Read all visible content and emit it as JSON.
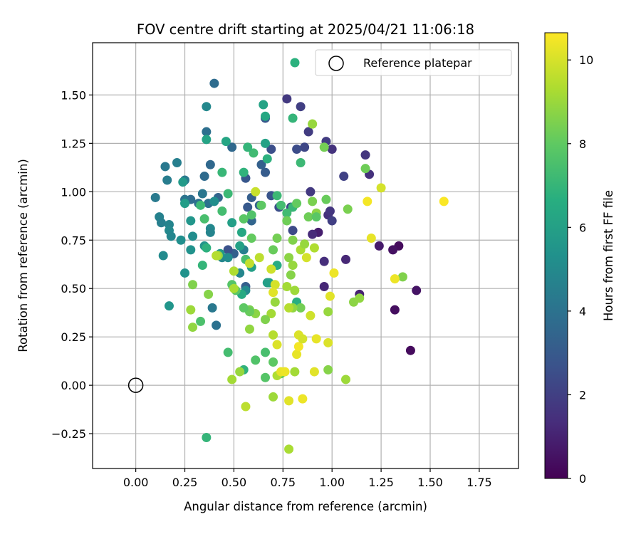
{
  "chart_data": {
    "type": "scatter",
    "title": "FOV centre drift starting at 2025/04/21 11:06:18",
    "xlabel": "Angular distance from reference (arcmin)",
    "ylabel": "Rotation from reference (arcmin)",
    "xlim": [
      -0.22,
      1.95
    ],
    "ylim": [
      -0.43,
      1.77
    ],
    "x_ticks": [
      "0.00",
      "0.25",
      "0.50",
      "0.75",
      "1.00",
      "1.25",
      "1.50",
      "1.75"
    ],
    "x_tick_values": [
      0,
      0.25,
      0.5,
      0.75,
      1.0,
      1.25,
      1.5,
      1.75
    ],
    "y_ticks": [
      "−0.25",
      "0.00",
      "0.25",
      "0.50",
      "0.75",
      "1.00",
      "1.25",
      "1.50"
    ],
    "y_tick_values": [
      -0.25,
      0,
      0.25,
      0.5,
      0.75,
      1.0,
      1.25,
      1.5
    ],
    "grid": true,
    "colormap": "viridis",
    "colorbar": {
      "label": "Hours from first FF file",
      "range": [
        0,
        10.65
      ],
      "ticks": [
        "0",
        "2",
        "4",
        "6",
        "8",
        "10"
      ],
      "tick_values": [
        0,
        2,
        4,
        6,
        8,
        10
      ]
    },
    "legend": {
      "position": "top-right",
      "entries": [
        {
          "label": "",
          "marker": "filled-circle",
          "color": "#2cb17e"
        },
        {
          "label": "Reference platepar",
          "marker": "open-circle",
          "color": "#000000"
        }
      ]
    },
    "reference_point": {
      "x": 0.0,
      "y": 0.0
    },
    "series": [
      {
        "marker": "filled-circle",
        "points": [
          [
            1.4,
            0.18,
            0.3
          ],
          [
            1.32,
            0.39,
            0.4
          ],
          [
            1.43,
            0.49,
            0.6
          ],
          [
            1.34,
            0.72,
            0.3
          ],
          [
            1.31,
            0.7,
            0.5
          ],
          [
            1.24,
            0.72,
            0.8
          ],
          [
            1.14,
            0.47,
            1.0
          ],
          [
            1.07,
            0.65,
            1.2
          ],
          [
            0.96,
            0.64,
            1.4
          ],
          [
            0.96,
            0.51,
            1.2
          ],
          [
            0.93,
            0.79,
            0.9
          ],
          [
            0.9,
            0.78,
            1.3
          ],
          [
            0.98,
            0.88,
            1.5
          ],
          [
            0.99,
            0.9,
            1.7
          ],
          [
            1.0,
            0.85,
            2.0
          ],
          [
            1.0,
            1.22,
            1.6
          ],
          [
            0.97,
            1.26,
            1.9
          ],
          [
            1.06,
            1.08,
            2.1
          ],
          [
            1.17,
            1.19,
            1.7
          ],
          [
            1.19,
            1.09,
            1.5
          ],
          [
            0.89,
            1.0,
            1.8
          ],
          [
            0.88,
            1.31,
            1.9
          ],
          [
            0.86,
            1.23,
            2.3
          ],
          [
            0.82,
            1.22,
            2.5
          ],
          [
            0.84,
            1.44,
            2.0
          ],
          [
            0.77,
            1.48,
            1.8
          ],
          [
            0.79,
            0.92,
            2.2
          ],
          [
            0.8,
            0.8,
            2.4
          ],
          [
            0.73,
            0.92,
            2.6
          ],
          [
            0.69,
            0.98,
            2.8
          ],
          [
            0.69,
            1.22,
            2.6
          ],
          [
            0.66,
            1.38,
            3.0
          ],
          [
            0.66,
            1.1,
            3.1
          ],
          [
            0.64,
            1.14,
            3.3
          ],
          [
            0.63,
            0.93,
            3.4
          ],
          [
            0.59,
            0.97,
            3.2
          ],
          [
            0.57,
            0.92,
            3.0
          ],
          [
            0.56,
            1.07,
            2.9
          ],
          [
            0.59,
            0.85,
            3.5
          ],
          [
            0.56,
            0.51,
            3.2
          ],
          [
            0.5,
            0.68,
            3.3
          ],
          [
            0.47,
            0.7,
            2.7
          ],
          [
            0.49,
            1.23,
            3.6
          ],
          [
            0.4,
            1.56,
            3.8
          ],
          [
            0.36,
            1.31,
            3.9
          ],
          [
            0.35,
            1.08,
            3.7
          ],
          [
            0.38,
            1.14,
            3.6
          ],
          [
            0.42,
            0.97,
            3.5
          ],
          [
            0.37,
            0.94,
            4.0
          ],
          [
            0.34,
            0.99,
            4.2
          ],
          [
            0.32,
            0.94,
            3.9
          ],
          [
            0.28,
            0.96,
            3.8
          ],
          [
            0.25,
            0.96,
            4.1
          ],
          [
            0.25,
            1.06,
            4.4
          ],
          [
            0.21,
            1.15,
            4.6
          ],
          [
            0.15,
            1.13,
            4.3
          ],
          [
            0.16,
            1.06,
            4.5
          ],
          [
            0.1,
            0.97,
            4.4
          ],
          [
            0.12,
            0.87,
            4.7
          ],
          [
            0.13,
            0.84,
            4.6
          ],
          [
            0.17,
            0.83,
            4.8
          ],
          [
            0.17,
            0.8,
            5.0
          ],
          [
            0.18,
            0.77,
            4.9
          ],
          [
            0.14,
            0.67,
            5.1
          ],
          [
            0.23,
            0.75,
            5.3
          ],
          [
            0.29,
            0.77,
            5.2
          ],
          [
            0.28,
            0.7,
            5.4
          ],
          [
            0.35,
            0.72,
            5.5
          ],
          [
            0.38,
            0.81,
            5.0
          ],
          [
            0.38,
            0.79,
            4.8
          ],
          [
            0.4,
            0.95,
            5.3
          ],
          [
            0.44,
            0.66,
            4.9
          ],
          [
            0.43,
            0.68,
            5.7
          ],
          [
            0.47,
            0.66,
            5.2
          ],
          [
            0.55,
            0.7,
            4.6
          ],
          [
            0.53,
            0.58,
            4.9
          ],
          [
            0.56,
            0.49,
            5.1
          ],
          [
            0.41,
            0.31,
            4.0
          ],
          [
            0.39,
            0.4,
            4.3
          ],
          [
            0.25,
            0.58,
            5.4
          ],
          [
            0.17,
            0.41,
            5.6
          ],
          [
            0.28,
            0.85,
            5.6
          ],
          [
            0.25,
            0.94,
            5.9
          ],
          [
            0.24,
            1.05,
            5.8
          ],
          [
            0.36,
            1.44,
            5.0
          ],
          [
            0.36,
            1.27,
            6.2
          ],
          [
            0.46,
            1.26,
            6.3
          ],
          [
            0.49,
            0.84,
            6.0
          ],
          [
            0.53,
            0.72,
            6.1
          ],
          [
            0.54,
            0.79,
            6.4
          ],
          [
            0.54,
            0.47,
            6.5
          ],
          [
            0.56,
            0.65,
            6.6
          ],
          [
            0.59,
            0.61,
            6.0
          ],
          [
            0.66,
            1.25,
            6.1
          ],
          [
            0.66,
            1.39,
            6.4
          ],
          [
            0.65,
            1.45,
            6.2
          ],
          [
            0.67,
            1.17,
            6.8
          ],
          [
            0.68,
            0.53,
            6.3
          ],
          [
            0.67,
            0.53,
            6.0
          ],
          [
            0.72,
            0.62,
            6.6
          ],
          [
            0.82,
            0.43,
            6.7
          ],
          [
            0.8,
            1.38,
            7.0
          ],
          [
            0.84,
            1.15,
            7.2
          ],
          [
            0.8,
            0.92,
            7.1
          ],
          [
            0.77,
            0.89,
            7.3
          ],
          [
            0.74,
            0.93,
            7.4
          ],
          [
            0.72,
            0.98,
            7.2
          ],
          [
            0.6,
            1.2,
            7.3
          ],
          [
            0.57,
            1.23,
            7.0
          ],
          [
            0.55,
            1.1,
            6.9
          ],
          [
            0.44,
            1.1,
            7.1
          ],
          [
            0.47,
            0.99,
            7.2
          ],
          [
            0.44,
            0.9,
            7.4
          ],
          [
            0.35,
            0.86,
            7.5
          ],
          [
            0.33,
            0.93,
            7.2
          ],
          [
            0.36,
            0.71,
            6.8
          ],
          [
            0.34,
            0.62,
            7.0
          ],
          [
            0.33,
            0.33,
            7.6
          ],
          [
            0.36,
            -0.27,
            7.0
          ],
          [
            0.47,
            0.17,
            7.4
          ],
          [
            0.55,
            0.08,
            6.9
          ],
          [
            0.66,
            0.17,
            7.5
          ],
          [
            0.61,
            0.13,
            7.7
          ],
          [
            0.66,
            0.04,
            7.8
          ],
          [
            0.7,
            0.12,
            8.0
          ],
          [
            0.74,
            0.06,
            8.2
          ],
          [
            0.49,
            0.52,
            7.8
          ],
          [
            0.51,
            0.49,
            7.9
          ],
          [
            0.56,
            0.65,
            7.5
          ],
          [
            0.55,
            0.86,
            7.9
          ],
          [
            0.59,
            0.76,
            8.1
          ],
          [
            0.59,
            0.88,
            7.7
          ],
          [
            0.64,
            0.93,
            8.0
          ],
          [
            0.7,
            0.7,
            8.2
          ],
          [
            0.72,
            0.76,
            8.4
          ],
          [
            0.77,
            0.85,
            8.3
          ],
          [
            0.8,
            0.75,
            8.6
          ],
          [
            0.82,
            0.94,
            8.1
          ],
          [
            0.88,
            0.87,
            8.3
          ],
          [
            0.9,
            0.95,
            8.5
          ],
          [
            0.92,
            0.89,
            8.8
          ],
          [
            0.92,
            0.87,
            7.9
          ],
          [
            0.97,
            0.96,
            8.2
          ],
          [
            0.96,
            1.23,
            8.4
          ],
          [
            1.08,
            0.91,
            8.5
          ],
          [
            1.17,
            1.12,
            8.3
          ],
          [
            1.36,
            0.56,
            8.6
          ],
          [
            1.11,
            0.43,
            8.8
          ],
          [
            1.14,
            0.45,
            8.9
          ],
          [
            0.98,
            0.38,
            9.0
          ],
          [
            0.98,
            0.08,
            8.7
          ],
          [
            1.07,
            0.03,
            9.1
          ],
          [
            0.84,
            0.4,
            8.4
          ],
          [
            0.8,
            0.4,
            8.9
          ],
          [
            0.79,
            0.57,
            8.7
          ],
          [
            0.8,
            0.62,
            9.0
          ],
          [
            0.78,
            0.66,
            8.8
          ],
          [
            0.77,
            0.51,
            9.2
          ],
          [
            0.81,
            0.49,
            9.1
          ],
          [
            0.84,
            0.7,
            9.3
          ],
          [
            0.86,
            0.73,
            9.0
          ],
          [
            0.91,
            0.71,
            9.4
          ],
          [
            0.78,
            0.4,
            9.5
          ],
          [
            0.81,
            0.07,
            9.2
          ],
          [
            0.78,
            -0.33,
            9.3
          ],
          [
            0.7,
            -0.06,
            9.1
          ],
          [
            0.72,
            0.05,
            9.4
          ],
          [
            0.7,
            0.26,
            9.5
          ],
          [
            0.71,
            0.43,
            9.0
          ],
          [
            0.69,
            0.37,
            9.2
          ],
          [
            0.66,
            0.34,
            8.6
          ],
          [
            0.61,
            0.37,
            8.8
          ],
          [
            0.58,
            0.39,
            8.5
          ],
          [
            0.58,
            0.38,
            8.2
          ],
          [
            0.58,
            0.29,
            8.9
          ],
          [
            0.56,
            -0.11,
            9.6
          ],
          [
            0.53,
            0.07,
            9.0
          ],
          [
            0.49,
            0.03,
            9.2
          ],
          [
            0.5,
            0.59,
            9.4
          ],
          [
            0.5,
            0.5,
            9.3
          ],
          [
            0.42,
            0.67,
            9.0
          ],
          [
            0.41,
            0.67,
            9.5
          ],
          [
            0.37,
            0.47,
            8.7
          ],
          [
            0.28,
            0.39,
            9.1
          ],
          [
            0.29,
            0.3,
            8.9
          ],
          [
            0.29,
            0.52,
            8.6
          ],
          [
            0.55,
            0.4,
            8.0
          ],
          [
            0.58,
            0.63,
            9.7
          ],
          [
            0.61,
            1.0,
            9.8
          ],
          [
            0.63,
            0.66,
            9.6
          ],
          [
            0.69,
            0.6,
            9.9
          ],
          [
            0.71,
            0.52,
            10.0
          ],
          [
            0.7,
            0.48,
            10.2
          ],
          [
            0.72,
            0.21,
            10.1
          ],
          [
            0.74,
            0.07,
            10.3
          ],
          [
            0.76,
            0.07,
            10.4
          ],
          [
            0.78,
            -0.08,
            10.2
          ],
          [
            0.82,
            0.16,
            10.3
          ],
          [
            0.83,
            0.2,
            10.5
          ],
          [
            0.83,
            0.26,
            10.1
          ],
          [
            0.85,
            0.24,
            10.0
          ],
          [
            0.85,
            -0.07,
            10.4
          ],
          [
            0.91,
            0.07,
            10.2
          ],
          [
            0.92,
            0.24,
            10.3
          ],
          [
            0.98,
            0.22,
            10.1
          ],
          [
            0.99,
            0.46,
            10.2
          ],
          [
            1.01,
            0.58,
            10.4
          ],
          [
            0.87,
            0.66,
            10.0
          ],
          [
            0.89,
            0.36,
            9.9
          ],
          [
            1.18,
            0.95,
            10.5
          ],
          [
            1.2,
            0.76,
            10.3
          ],
          [
            1.25,
            1.02,
            10.0
          ],
          [
            1.32,
            0.55,
            10.4
          ],
          [
            1.57,
            0.95,
            10.6
          ],
          [
            0.9,
            1.35,
            9.6
          ],
          [
            0.9,
            1.35,
            9.0
          ]
        ]
      }
    ]
  }
}
